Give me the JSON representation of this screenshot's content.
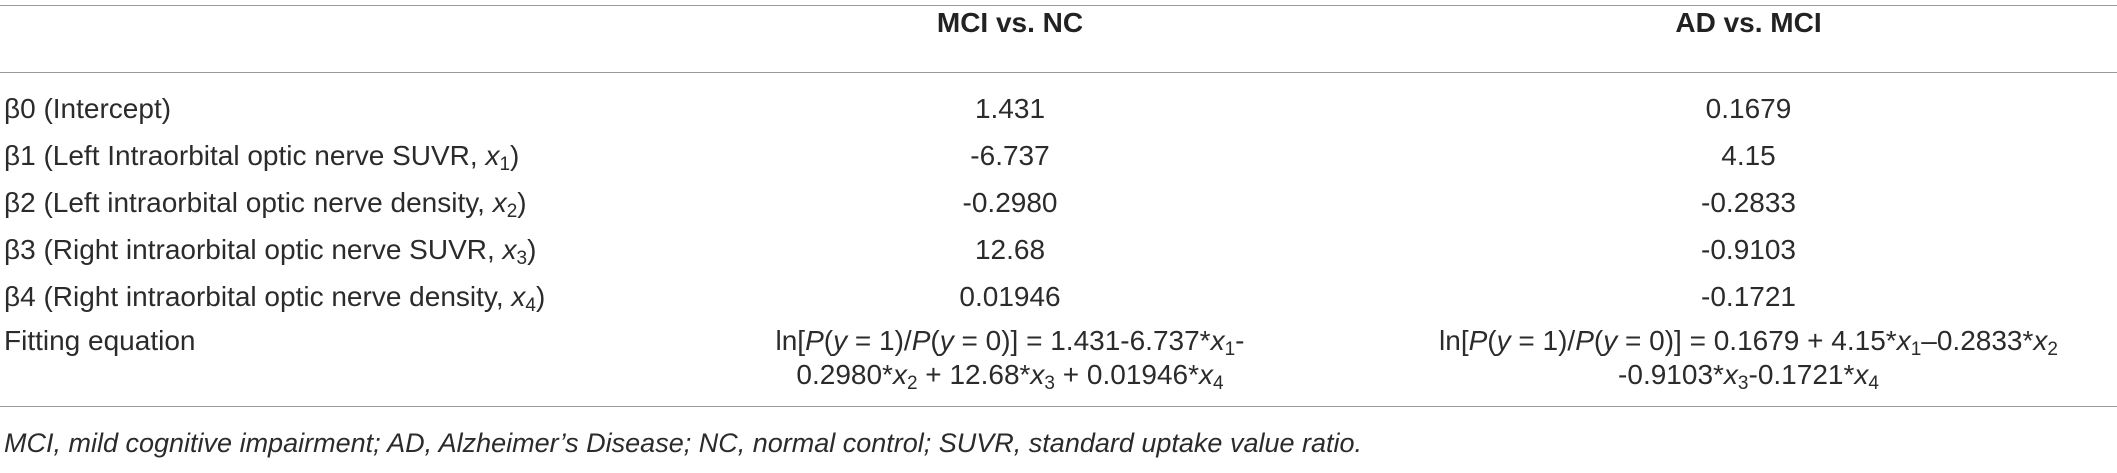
{
  "table": {
    "headers": [
      "",
      "MCI vs. NC",
      "AD vs. MCI"
    ],
    "rows": [
      {
        "label": "β0 (Intercept)",
        "mci_nc": "1.431",
        "ad_mci": "0.1679"
      },
      {
        "label_main": "β1 (Left Intraorbital optic nerve SUVR, ",
        "var": "x",
        "sub": "1",
        "mci_nc": "-6.737",
        "ad_mci": "4.15"
      },
      {
        "label_main": "β2 (Left intraorbital optic nerve density, ",
        "var": "x",
        "sub": "2",
        "mci_nc": "-0.2980",
        "ad_mci": "-0.2833"
      },
      {
        "label_main": "β3 (Right intraorbital optic nerve SUVR, ",
        "var": "x",
        "sub": "3",
        "mci_nc": "12.68",
        "ad_mci": "-0.9103"
      },
      {
        "label_main": "β4 (Right intraorbital optic nerve density, ",
        "var": "x",
        "sub": "4",
        "mci_nc": "0.01946",
        "ad_mci": "-0.1721"
      }
    ],
    "equation_row": {
      "label": "Fitting equation",
      "mci_nc_line1": "ln[P(y = 1)/P(y = 0)] = 1.431-6.737*x1-",
      "mci_nc_line2": "0.2980*x2 + 12.68*x3 + 0.01946*x4",
      "ad_mci_line1": "ln[P(y = 1)/P(y = 0)] = 0.1679 + 4.15*x1–0.2833*x2",
      "ad_mci_line2": "-0.9103*x3-0.1721*x4"
    }
  },
  "footnote": "MCI, mild cognitive impairment; AD, Alzheimer’s Disease; NC, normal control; SUVR, standard uptake value ratio."
}
